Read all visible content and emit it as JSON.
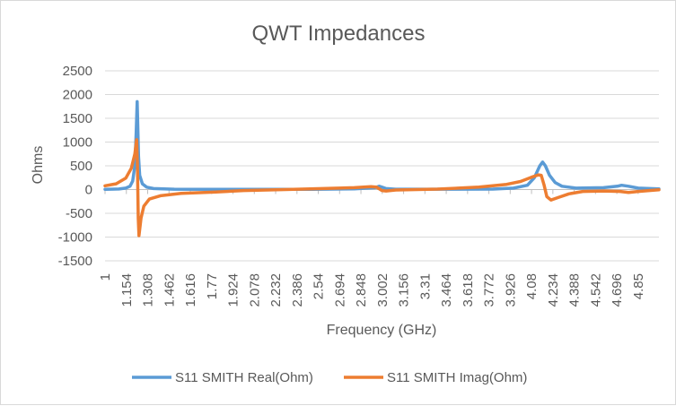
{
  "chart_data": {
    "type": "line",
    "title": "QWT Impedances",
    "xlabel": "Frequency (GHz)",
    "ylabel": "Ohms",
    "ylim": [
      -1500,
      2500
    ],
    "yticks": [
      "2500",
      "2000",
      "1500",
      "1000",
      "500",
      "0",
      "-500",
      "-1000",
      "-1500"
    ],
    "xlim": [
      1,
      5
    ],
    "xticks": [
      "1",
      "1.154",
      "1.308",
      "1.462",
      "1.616",
      "1.77",
      "1.924",
      "2.078",
      "2.232",
      "2.386",
      "2.54",
      "2.694",
      "2.848",
      "3.002",
      "3.156",
      "3.31",
      "3.464",
      "3.618",
      "3.772",
      "3.926",
      "4.08",
      "4.234",
      "4.388",
      "4.542",
      "4.696",
      "4.85"
    ],
    "grid": true,
    "legend_position": "bottom",
    "series": [
      {
        "name": "S11 SMITH Real(Ohm)",
        "color": "#5b9bd5",
        "points": [
          [
            1.0,
            5
          ],
          [
            1.1,
            12
          ],
          [
            1.15,
            30
          ],
          [
            1.18,
            70
          ],
          [
            1.2,
            180
          ],
          [
            1.215,
            500
          ],
          [
            1.225,
            1200
          ],
          [
            1.232,
            1850
          ],
          [
            1.236,
            1400
          ],
          [
            1.242,
            700
          ],
          [
            1.25,
            300
          ],
          [
            1.27,
            120
          ],
          [
            1.3,
            50
          ],
          [
            1.35,
            20
          ],
          [
            1.5,
            8
          ],
          [
            2.0,
            3
          ],
          [
            2.5,
            3
          ],
          [
            2.8,
            15
          ],
          [
            2.95,
            40
          ],
          [
            2.98,
            70
          ],
          [
            3.0,
            50
          ],
          [
            3.03,
            20
          ],
          [
            3.1,
            8
          ],
          [
            3.5,
            8
          ],
          [
            3.8,
            10
          ],
          [
            3.95,
            30
          ],
          [
            4.05,
            90
          ],
          [
            4.1,
            250
          ],
          [
            4.14,
            500
          ],
          [
            4.16,
            580
          ],
          [
            4.18,
            500
          ],
          [
            4.21,
            300
          ],
          [
            4.25,
            150
          ],
          [
            4.3,
            70
          ],
          [
            4.4,
            30
          ],
          [
            4.6,
            40
          ],
          [
            4.7,
            70
          ],
          [
            4.73,
            90
          ],
          [
            4.78,
            70
          ],
          [
            4.85,
            30
          ],
          [
            5.0,
            15
          ]
        ]
      },
      {
        "name": "S11 SMITH Imag(Ohm)",
        "color": "#ed7d31",
        "points": [
          [
            1.0,
            80
          ],
          [
            1.08,
            120
          ],
          [
            1.15,
            240
          ],
          [
            1.19,
            450
          ],
          [
            1.215,
            750
          ],
          [
            1.228,
            1050
          ],
          [
            1.234,
            500
          ],
          [
            1.24,
            -600
          ],
          [
            1.245,
            -970
          ],
          [
            1.26,
            -600
          ],
          [
            1.28,
            -350
          ],
          [
            1.32,
            -200
          ],
          [
            1.4,
            -130
          ],
          [
            1.55,
            -80
          ],
          [
            1.8,
            -50
          ],
          [
            2.0,
            -20
          ],
          [
            2.3,
            0
          ],
          [
            2.6,
            25
          ],
          [
            2.8,
            40
          ],
          [
            2.92,
            60
          ],
          [
            2.96,
            50
          ],
          [
            3.0,
            -20
          ],
          [
            3.03,
            -30
          ],
          [
            3.1,
            -10
          ],
          [
            3.4,
            10
          ],
          [
            3.7,
            50
          ],
          [
            3.9,
            110
          ],
          [
            4.0,
            170
          ],
          [
            4.08,
            260
          ],
          [
            4.13,
            310
          ],
          [
            4.15,
            300
          ],
          [
            4.17,
            100
          ],
          [
            4.19,
            -150
          ],
          [
            4.22,
            -220
          ],
          [
            4.27,
            -170
          ],
          [
            4.35,
            -90
          ],
          [
            4.45,
            -40
          ],
          [
            4.6,
            -30
          ],
          [
            4.72,
            -40
          ],
          [
            4.78,
            -60
          ],
          [
            4.85,
            -40
          ],
          [
            5.0,
            -5
          ]
        ]
      }
    ]
  }
}
